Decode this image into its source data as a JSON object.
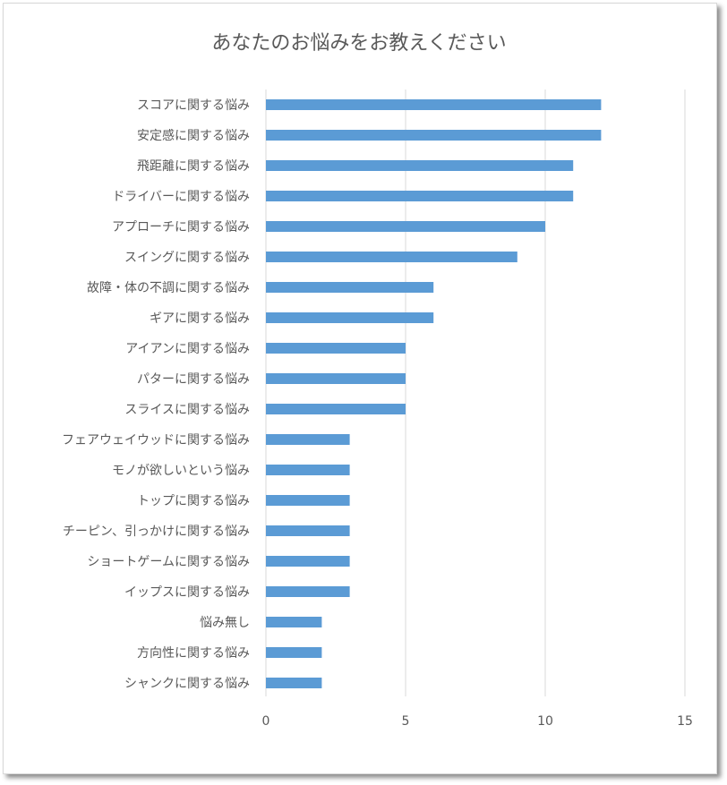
{
  "chart_data": {
    "type": "bar",
    "orientation": "horizontal",
    "title": "あなたのお悩みをお教えください",
    "categories": [
      "スコアに関する悩み",
      "安定感に関する悩み",
      "飛距離に関する悩み",
      "ドライバーに関する悩み",
      "アプローチに関する悩み",
      "スイングに関する悩み",
      "故障・体の不調に関する悩み",
      "ギアに関する悩み",
      "アイアンに関する悩み",
      "パターに関する悩み",
      "スライスに関する悩み",
      "フェアウェイウッドに関する悩み",
      "モノが欲しいという悩み",
      "トップに関する悩み",
      "チーピン、引っかけに関する悩み",
      "ショートゲームに関する悩み",
      "イップスに関する悩み",
      "悩み無し",
      "方向性に関する悩み",
      "シャンクに関する悩み"
    ],
    "values": [
      12,
      12,
      11,
      11,
      10,
      9,
      6,
      6,
      5,
      5,
      5,
      3,
      3,
      3,
      3,
      3,
      3,
      2,
      2,
      2
    ],
    "xlim": [
      0,
      15
    ],
    "xticks": [
      0,
      5,
      10,
      15
    ],
    "xlabel": "",
    "ylabel": "",
    "grid": true,
    "legend": "none",
    "colors": {
      "bar": "#5b9bd5",
      "grid": "#d9d9d9",
      "text": "#595959",
      "title": "#595959"
    }
  }
}
